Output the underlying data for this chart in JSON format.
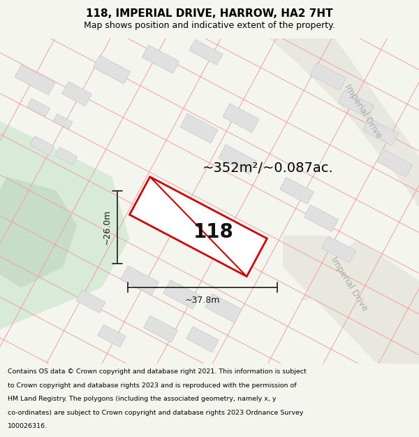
{
  "title": "118, IMPERIAL DRIVE, HARROW, HA2 7HT",
  "subtitle": "Map shows position and indicative extent of the property.",
  "area_text": "~352m²/~0.087ac.",
  "width_label": "~37.8m",
  "height_label": "~26.0m",
  "property_label": "118",
  "footer_lines": [
    "Contains OS data © Crown copyright and database right 2021. This information is subject",
    "to Crown copyright and database rights 2023 and is reproduced with the permission of",
    "HM Land Registry. The polygons (including the associated geometry, namely x, y",
    "co-ordinates) are subject to Crown copyright and database rights 2023 Ordnance Survey",
    "100026316."
  ],
  "bg_color": "#f5f5f0",
  "map_bg": "#ffffff",
  "plot_outline_color": "#cc0000",
  "grid_line_color": "#f0a0a0",
  "road_color": "#e8e8e0",
  "green_area_color": "#d8ead8",
  "green_blob_color": "#c8ddc8",
  "building_fill": "#e0e0e0",
  "building_edge": "#c8c8c8",
  "title_color": "#000000",
  "footer_color": "#000000",
  "dim_line_color": "#1a1a1a",
  "road_label_color": "#aaaaaa",
  "title_fontsize": 11,
  "subtitle_fontsize": 9,
  "area_fontsize": 14,
  "prop_label_fontsize": 20,
  "dim_fontsize": 9,
  "road_label_fontsize": 9,
  "footer_fontsize": 6.8
}
